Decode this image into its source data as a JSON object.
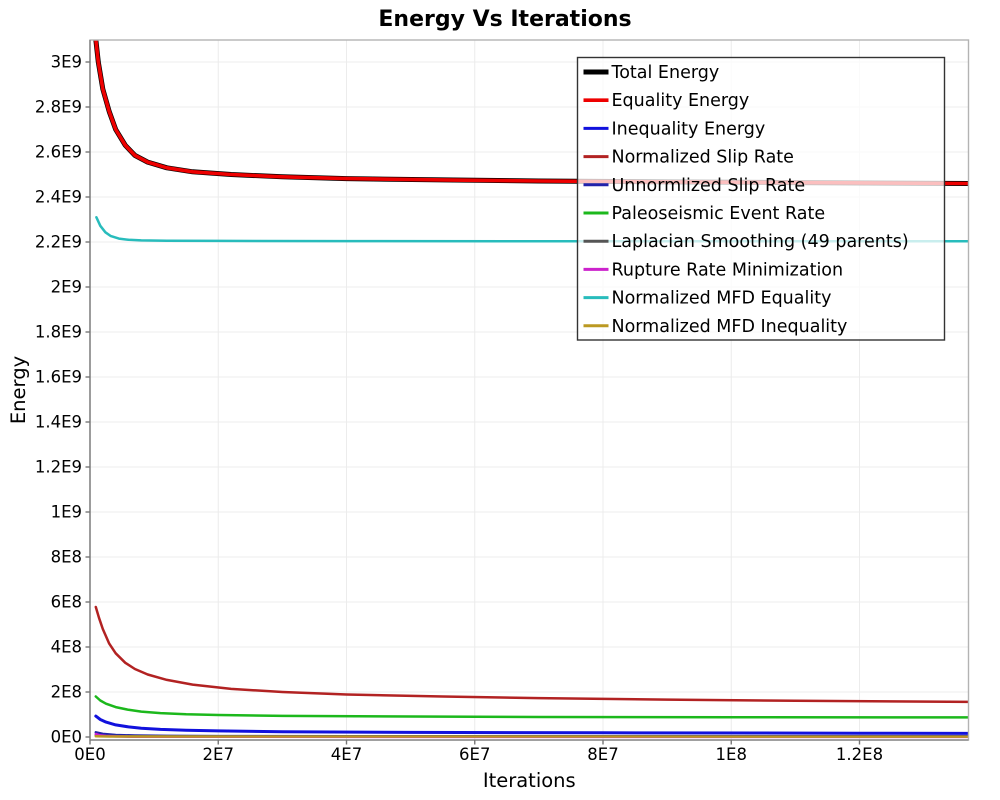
{
  "chart_data": {
    "type": "line",
    "title": "Energy Vs Iterations",
    "xlabel": "Iterations",
    "ylabel": "Energy",
    "xlim": [
      0,
      137000000.0
    ],
    "ylim": [
      0,
      3100000000.0
    ],
    "grid": true,
    "legend_position": "top-right",
    "colors": {
      "plot_border": "#b3b3b3",
      "axis_line": "#8a8a8a",
      "grid_line": "#ececec",
      "tick_mark": "#777777",
      "legend_border": "#333333",
      "legend_background": "rgba(255,255,255,0.75)",
      "text": "#000000"
    },
    "x_ticks": [
      {
        "value": 0,
        "label": "0E0"
      },
      {
        "value": 20000000.0,
        "label": "2E7"
      },
      {
        "value": 40000000.0,
        "label": "4E7"
      },
      {
        "value": 60000000.0,
        "label": "6E7"
      },
      {
        "value": 80000000.0,
        "label": "8E7"
      },
      {
        "value": 100000000.0,
        "label": "1E8"
      },
      {
        "value": 120000000.0,
        "label": "1.2E8"
      }
    ],
    "y_ticks": [
      {
        "value": 0,
        "label": "0E0"
      },
      {
        "value": 200000000.0,
        "label": "2E8"
      },
      {
        "value": 400000000.0,
        "label": "4E8"
      },
      {
        "value": 600000000.0,
        "label": "6E8"
      },
      {
        "value": 800000000.0,
        "label": "8E8"
      },
      {
        "value": 1000000000.0,
        "label": "1E9"
      },
      {
        "value": 1200000000.0,
        "label": "1.2E9"
      },
      {
        "value": 1400000000.0,
        "label": "1.4E9"
      },
      {
        "value": 1600000000.0,
        "label": "1.6E9"
      },
      {
        "value": 1800000000.0,
        "label": "1.8E9"
      },
      {
        "value": 2000000000.0,
        "label": "2E9"
      },
      {
        "value": 2200000000.0,
        "label": "2.2E9"
      },
      {
        "value": 2400000000.0,
        "label": "2.4E9"
      },
      {
        "value": 2600000000.0,
        "label": "2.6E9"
      },
      {
        "value": 2800000000.0,
        "label": "2.8E9"
      },
      {
        "value": 3000000000.0,
        "label": "3E9"
      }
    ],
    "series": [
      {
        "name": "Total Energy",
        "color": "#000000",
        "width": 5,
        "x": [
          900000.0,
          1300000.0,
          2000000.0,
          3000000.0,
          4000000.0,
          5500000.0,
          7000000.0,
          9000000.0,
          12000000.0,
          16000000.0,
          22000000.0,
          30000000.0,
          40000000.0,
          55000000.0,
          70000000.0,
          90000000.0,
          110000000.0,
          125000000.0,
          137000000.0
        ],
        "y": [
          3100000000.0,
          3000000000.0,
          2880000000.0,
          2780000000.0,
          2700000000.0,
          2630000000.0,
          2585000000.0,
          2555000000.0,
          2530000000.0,
          2512000000.0,
          2500000000.0,
          2490000000.0,
          2482000000.0,
          2476000000.0,
          2471000000.0,
          2467000000.0,
          2464000000.0,
          2462000000.0,
          2460000000.0
        ]
      },
      {
        "name": "Equality Energy",
        "color": "#ee0000",
        "width": 3.6,
        "x": [
          900000.0,
          1300000.0,
          2000000.0,
          3000000.0,
          4000000.0,
          5500000.0,
          7000000.0,
          9000000.0,
          12000000.0,
          16000000.0,
          22000000.0,
          30000000.0,
          40000000.0,
          55000000.0,
          70000000.0,
          90000000.0,
          110000000.0,
          125000000.0,
          137000000.0
        ],
        "y": [
          3100000000.0,
          3000000000.0,
          2880000000.0,
          2780000000.0,
          2700000000.0,
          2630000000.0,
          2585000000.0,
          2555000000.0,
          2530000000.0,
          2512000000.0,
          2500000000.0,
          2490000000.0,
          2482000000.0,
          2476000000.0,
          2471000000.0,
          2467000000.0,
          2464000000.0,
          2462000000.0,
          2460000000.0
        ]
      },
      {
        "name": "Inequality Energy",
        "color": "#1111dd",
        "width": 3,
        "x": [
          900000.0,
          1600000.0,
          2500000.0,
          4000000.0,
          6000000.0,
          8000000.0,
          11000000.0,
          15000000.0,
          20000000.0,
          30000000.0,
          50000000.0,
          80000000.0,
          120000000.0,
          137000000.0
        ],
        "y": [
          93000000.0,
          78000000.0,
          66000000.0,
          54000000.0,
          45000000.0,
          39000000.0,
          34000000.0,
          30000000.0,
          27000000.0,
          23500000.0,
          20500000.0,
          18500000.0,
          17000000.0,
          16000000.0
        ]
      },
      {
        "name": "Normalized Slip Rate",
        "color": "#b22222",
        "width": 2.5,
        "x": [
          900000.0,
          1400000.0,
          2000000.0,
          3000000.0,
          4000000.0,
          5500000.0,
          7000000.0,
          9000000.0,
          12000000.0,
          16000000.0,
          22000000.0,
          30000000.0,
          40000000.0,
          55000000.0,
          70000000.0,
          90000000.0,
          110000000.0,
          137000000.0
        ],
        "y": [
          578000000.0,
          530000000.0,
          480000000.0,
          415000000.0,
          372000000.0,
          330000000.0,
          302000000.0,
          278000000.0,
          254000000.0,
          233000000.0,
          214000000.0,
          200000000.0,
          189000000.0,
          180000000.0,
          173000000.0,
          166000000.0,
          161000000.0,
          156000000.0
        ]
      },
      {
        "name": "Unnormlized Slip Rate",
        "color": "#2222aa",
        "width": 2.5,
        "x": [
          900000.0,
          2000000.0,
          4000000.0,
          7000000.0,
          12000000.0,
          20000000.0,
          40000000.0,
          80000000.0,
          137000000.0
        ],
        "y": [
          21000000.0,
          14000000.0,
          9000000.0,
          6500000.0,
          5000000.0,
          4200000.0,
          3600000.0,
          3200000.0,
          3000000.0
        ]
      },
      {
        "name": "Paleoseismic Event Rate",
        "color": "#1cb81c",
        "width": 2.5,
        "x": [
          900000.0,
          1600000.0,
          2500000.0,
          4000000.0,
          6000000.0,
          8000000.0,
          11000000.0,
          15000000.0,
          20000000.0,
          30000000.0,
          50000000.0,
          70000000.0,
          100000000.0,
          137000000.0
        ],
        "y": [
          180000000.0,
          162000000.0,
          148000000.0,
          133000000.0,
          121000000.0,
          113000000.0,
          106000000.0,
          101000000.0,
          98000000.0,
          94000000.0,
          91000000.0,
          89000000.0,
          88000000.0,
          87000000.0
        ]
      },
      {
        "name": "Laplacian Smoothing (49 parents)",
        "color": "#555555",
        "width": 2.5,
        "x": [
          900000.0,
          2000000.0,
          5000000.0,
          10000000.0,
          30000000.0,
          137000000.0
        ],
        "y": [
          8000000.0,
          5000000.0,
          3000000.0,
          2000000.0,
          1500000.0,
          1200000.0
        ]
      },
      {
        "name": "Rupture Rate Minimization",
        "color": "#cc22cc",
        "width": 2.5,
        "x": [
          900000.0,
          1500000.0,
          2500000.0,
          4000000.0,
          7000000.0,
          15000000.0,
          137000000.0
        ],
        "y": [
          13000000.0,
          8000000.0,
          4500000.0,
          2500000.0,
          1200000.0,
          800000.0,
          500000.0
        ]
      },
      {
        "name": "Normalized MFD Equality",
        "color": "#28bcbc",
        "width": 2.5,
        "x": [
          1000000.0,
          1600000.0,
          2400000.0,
          3200000.0,
          4500000.0,
          6000000.0,
          8000000.0,
          12000000.0,
          20000000.0,
          40000000.0,
          80000000.0,
          137000000.0
        ],
        "y": [
          2310000000.0,
          2272000000.0,
          2243000000.0,
          2227000000.0,
          2215000000.0,
          2210000000.0,
          2207000000.0,
          2206000000.0,
          2205000000.0,
          2204000000.0,
          2203000000.0,
          2203000000.0
        ]
      },
      {
        "name": "Normalized MFD Inequality",
        "color": "#bb9922",
        "width": 2.5,
        "x": [
          900000.0,
          3000000.0,
          10000000.0,
          137000000.0
        ],
        "y": [
          3000000.0,
          2200000.0,
          2000000.0,
          1800000.0
        ]
      }
    ]
  }
}
